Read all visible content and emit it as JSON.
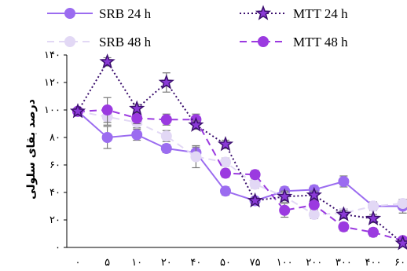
{
  "chart_data": {
    "type": "line",
    "ylabel": "درصد بقای سلولی",
    "xlabel": "",
    "categories": [
      "۰",
      "۵",
      "۱۰",
      "۲۰",
      "۴۰",
      "۵۰",
      "۷۵",
      "۱۰۰",
      "۲۰۰",
      "۳۰۰",
      "۴۰۰",
      "۶۰۰"
    ],
    "yticks": [
      "۰",
      "۲۰",
      "۴۰",
      "۶۰",
      "۸۰",
      "۱۰۰",
      "۱۲۰",
      "۱۴۰"
    ],
    "ylim": [
      0,
      140
    ],
    "grid": false,
    "legend_position": "top",
    "series": [
      {
        "name": "SRB 24 h",
        "color": "#9b6cf0",
        "line_style": "solid",
        "marker": "circle",
        "values": [
          99,
          80,
          82,
          72,
          69,
          41,
          34,
          41,
          42,
          48,
          30,
          30
        ],
        "errors": [
          2,
          8,
          4,
          3,
          4,
          3,
          2,
          3,
          3,
          4,
          3,
          5
        ]
      },
      {
        "name": "MTT 24 h",
        "color": "#3b0f6e",
        "fill": "#8a3ad6",
        "line_style": "dotted",
        "marker": "star",
        "values": [
          99,
          135,
          101,
          120,
          89,
          75,
          34,
          37,
          38,
          24,
          21,
          3
        ],
        "errors": [
          2,
          3,
          3,
          7,
          3,
          3,
          2,
          3,
          3,
          3,
          3,
          2
        ]
      },
      {
        "name": "SRB 48 h",
        "color": "#e2d8f5",
        "line_style": "dashed",
        "marker": "circle",
        "values": [
          99,
          95,
          91,
          81,
          66,
          62,
          46,
          37,
          24,
          25,
          30,
          32
        ],
        "errors": [
          2,
          6,
          4,
          4,
          8,
          3,
          3,
          4,
          3,
          3,
          3,
          3
        ]
      },
      {
        "name": "MTT 48 h",
        "color": "#9b3ae0",
        "line_style": "dashed",
        "marker": "circle",
        "values": [
          99,
          100,
          94,
          93,
          93,
          54,
          53,
          27,
          31,
          15,
          11,
          5
        ],
        "errors": [
          2,
          9,
          4,
          4,
          4,
          3,
          3,
          5,
          3,
          3,
          3,
          2
        ]
      }
    ]
  }
}
